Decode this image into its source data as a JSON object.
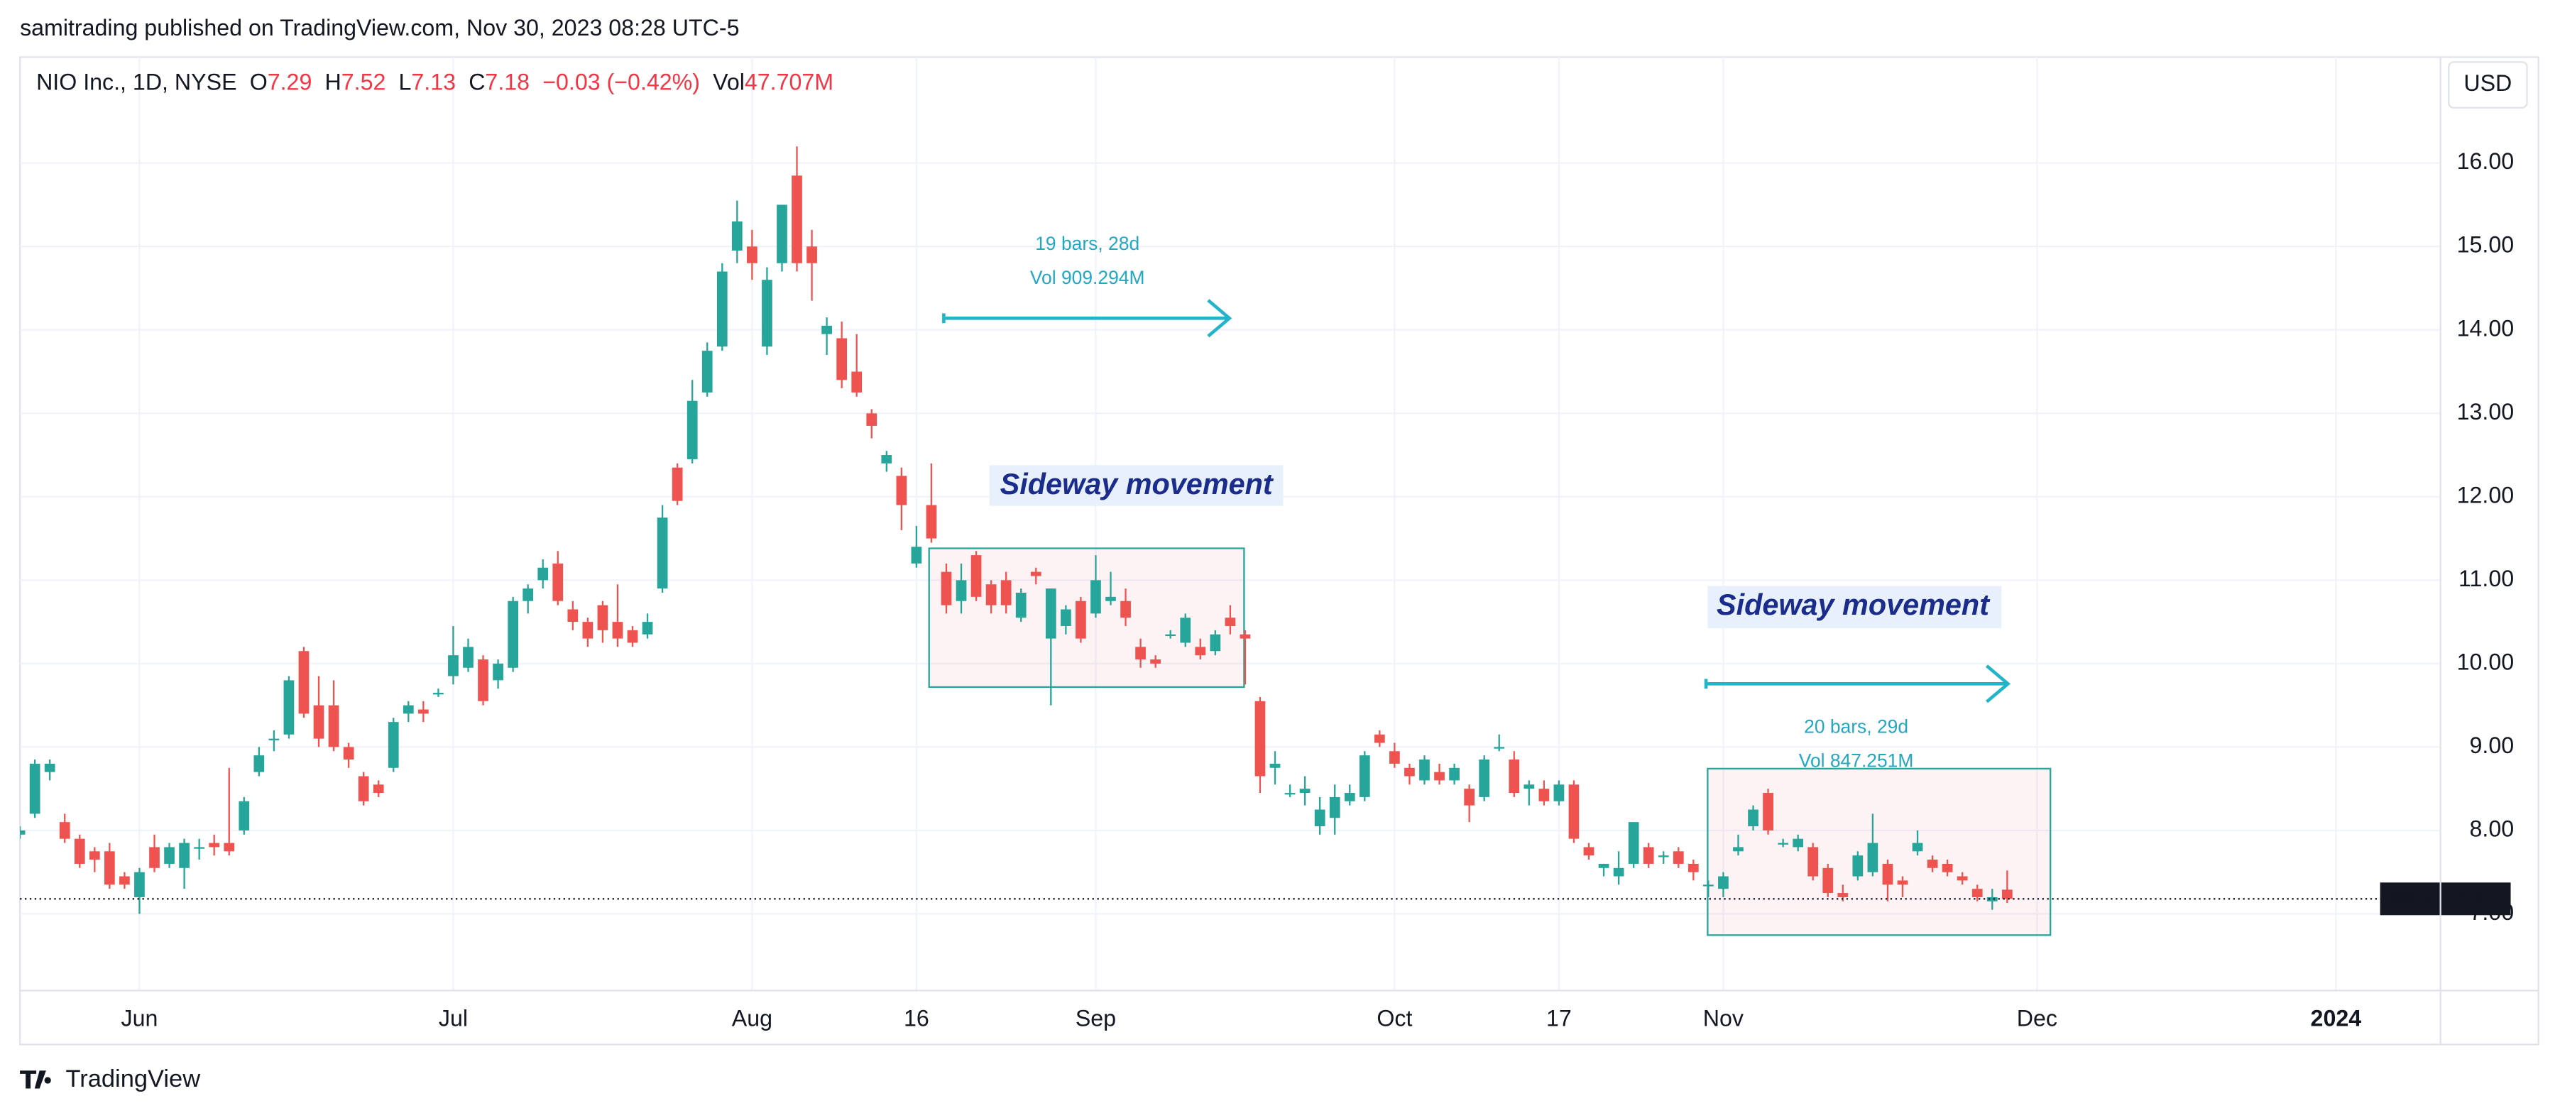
{
  "header": {
    "published": "samitrading published on TradingView.com, Nov 30, 2023 08:28 UTC-5"
  },
  "chart_data": {
    "type": "candlestick",
    "title": "NIO Inc., 1D, NYSE",
    "legend_labels": [
      "O",
      "H",
      "L",
      "C"
    ],
    "change": "−0.03 (−0.42%)",
    "volume_label": "Vol",
    "volume": "47.707M",
    "currency": "USD",
    "symbol": "NIO",
    "up_color": "#26a69a",
    "down_color": "#ef5350",
    "grid": true,
    "xlim": [
      0,
      162
    ],
    "xticks": [
      {
        "value": 8,
        "label": "Jun"
      },
      {
        "value": 29,
        "label": "Jul"
      },
      {
        "value": 49,
        "label": "Aug"
      },
      {
        "value": 60,
        "label": "16"
      },
      {
        "value": 72,
        "label": "Sep"
      },
      {
        "value": 92,
        "label": "Oct"
      },
      {
        "value": 103,
        "label": "17"
      },
      {
        "value": 114,
        "label": "Nov"
      },
      {
        "value": 135,
        "label": "Dec"
      },
      {
        "value": 155,
        "label": "2024"
      }
    ],
    "ylim": [
      6.08,
      17.27
    ],
    "yticks": [
      {
        "value": 7,
        "label": "7.00"
      },
      {
        "value": 8,
        "label": "8.00"
      },
      {
        "value": 9,
        "label": "9.00"
      },
      {
        "value": 10,
        "label": "10.00"
      },
      {
        "value": 11,
        "label": "11.00"
      },
      {
        "value": 12,
        "label": "12.00"
      },
      {
        "value": 13,
        "label": "13.00"
      },
      {
        "value": 14,
        "label": "14.00"
      },
      {
        "value": 15,
        "label": "15.00"
      },
      {
        "value": 16,
        "label": "16.00"
      }
    ],
    "annotations": [
      {
        "bars": "19 bars, 28d",
        "volume": "Vol 909.294M",
        "text": "Sideway movement"
      },
      {
        "bars": "20 bars, 29d",
        "volume": "Vol 847.251M",
        "text": "Sideway movement"
      }
    ],
    "ohlc": [
      [
        7.95,
        8.05,
        7.9,
        8.0
      ],
      [
        8.2,
        8.85,
        8.15,
        8.8
      ],
      [
        8.7,
        8.85,
        8.6,
        8.8
      ],
      [
        8.1,
        8.2,
        7.85,
        7.9
      ],
      [
        7.9,
        7.95,
        7.55,
        7.6
      ],
      [
        7.75,
        7.8,
        7.5,
        7.65
      ],
      [
        7.75,
        7.85,
        7.3,
        7.35
      ],
      [
        7.45,
        7.5,
        7.3,
        7.35
      ],
      [
        7.2,
        7.55,
        7.0,
        7.5
      ],
      [
        7.8,
        7.95,
        7.5,
        7.55
      ],
      [
        7.6,
        7.85,
        7.55,
        7.8
      ],
      [
        7.55,
        7.9,
        7.3,
        7.85
      ],
      [
        7.8,
        7.9,
        7.65,
        7.8
      ],
      [
        7.85,
        7.95,
        7.7,
        7.8
      ],
      [
        7.85,
        8.75,
        7.7,
        7.75
      ],
      [
        8.0,
        8.4,
        7.95,
        8.35
      ],
      [
        8.7,
        9.0,
        8.65,
        8.9
      ],
      [
        9.1,
        9.2,
        8.95,
        9.1
      ],
      [
        9.15,
        9.85,
        9.1,
        9.8
      ],
      [
        10.15,
        10.2,
        9.35,
        9.4
      ],
      [
        9.5,
        9.85,
        9.0,
        9.1
      ],
      [
        9.5,
        9.8,
        8.95,
        9.0
      ],
      [
        9.0,
        9.05,
        8.75,
        8.85
      ],
      [
        8.65,
        8.7,
        8.3,
        8.35
      ],
      [
        8.55,
        8.6,
        8.4,
        8.45
      ],
      [
        8.75,
        9.35,
        8.7,
        9.3
      ],
      [
        9.4,
        9.55,
        9.3,
        9.5
      ],
      [
        9.45,
        9.55,
        9.3,
        9.4
      ],
      [
        9.65,
        9.7,
        9.6,
        9.65
      ],
      [
        9.85,
        10.45,
        9.75,
        10.1
      ],
      [
        9.95,
        10.3,
        9.9,
        10.2
      ],
      [
        10.05,
        10.1,
        9.5,
        9.55
      ],
      [
        9.8,
        10.05,
        9.7,
        10.0
      ],
      [
        9.95,
        10.8,
        9.9,
        10.75
      ],
      [
        10.75,
        10.95,
        10.6,
        10.9
      ],
      [
        11.0,
        11.25,
        10.9,
        11.15
      ],
      [
        11.2,
        11.35,
        10.7,
        10.75
      ],
      [
        10.65,
        10.75,
        10.4,
        10.5
      ],
      [
        10.5,
        10.55,
        10.2,
        10.3
      ],
      [
        10.7,
        10.75,
        10.25,
        10.4
      ],
      [
        10.5,
        10.95,
        10.2,
        10.3
      ],
      [
        10.4,
        10.45,
        10.2,
        10.25
      ],
      [
        10.35,
        10.6,
        10.3,
        10.5
      ],
      [
        10.9,
        11.9,
        10.85,
        11.75
      ],
      [
        12.35,
        12.4,
        11.9,
        11.95
      ],
      [
        12.45,
        13.4,
        12.4,
        13.15
      ],
      [
        13.25,
        13.85,
        13.2,
        13.75
      ],
      [
        13.8,
        14.8,
        13.75,
        14.7
      ],
      [
        14.95,
        15.55,
        14.8,
        15.3
      ],
      [
        15.0,
        15.2,
        14.6,
        14.8
      ],
      [
        13.8,
        14.75,
        13.7,
        14.6
      ],
      [
        14.8,
        15.5,
        14.7,
        15.5
      ],
      [
        15.85,
        16.2,
        14.7,
        14.8
      ],
      [
        15.0,
        15.2,
        14.35,
        14.8
      ],
      [
        13.95,
        14.15,
        13.7,
        14.05
      ],
      [
        13.9,
        14.1,
        13.3,
        13.4
      ],
      [
        13.5,
        13.95,
        13.2,
        13.25
      ],
      [
        13.0,
        13.05,
        12.7,
        12.85
      ],
      [
        12.4,
        12.55,
        12.3,
        12.5
      ],
      [
        12.25,
        12.35,
        11.6,
        11.9
      ],
      [
        11.2,
        11.65,
        11.15,
        11.4
      ],
      [
        11.9,
        12.4,
        11.45,
        11.5
      ],
      [
        11.1,
        11.2,
        10.6,
        10.7
      ],
      [
        10.75,
        11.2,
        10.6,
        11.0
      ],
      [
        11.3,
        11.35,
        10.75,
        10.8
      ],
      [
        10.95,
        11.0,
        10.6,
        10.7
      ],
      [
        11.0,
        11.1,
        10.6,
        10.7
      ],
      [
        10.55,
        10.9,
        10.5,
        10.85
      ],
      [
        11.1,
        11.15,
        10.95,
        11.05
      ],
      [
        10.3,
        10.9,
        9.5,
        10.9
      ],
      [
        10.45,
        10.7,
        10.35,
        10.65
      ],
      [
        10.75,
        10.8,
        10.25,
        10.3
      ],
      [
        10.6,
        11.3,
        10.55,
        11.0
      ],
      [
        10.75,
        11.1,
        10.7,
        10.8
      ],
      [
        10.75,
        10.9,
        10.45,
        10.55
      ],
      [
        10.2,
        10.3,
        9.95,
        10.05
      ],
      [
        10.05,
        10.1,
        9.95,
        10.0
      ],
      [
        10.35,
        10.4,
        10.3,
        10.35
      ],
      [
        10.25,
        10.6,
        10.2,
        10.55
      ],
      [
        10.2,
        10.3,
        10.05,
        10.1
      ],
      [
        10.15,
        10.4,
        10.1,
        10.35
      ],
      [
        10.55,
        10.7,
        10.35,
        10.45
      ],
      [
        10.35,
        10.4,
        9.75,
        10.3
      ],
      [
        9.55,
        9.6,
        8.45,
        8.65
      ],
      [
        8.75,
        8.95,
        8.55,
        8.8
      ],
      [
        8.45,
        8.55,
        8.4,
        8.45
      ],
      [
        8.45,
        8.65,
        8.3,
        8.5
      ],
      [
        8.05,
        8.4,
        7.95,
        8.25
      ],
      [
        8.15,
        8.55,
        7.95,
        8.4
      ],
      [
        8.35,
        8.55,
        8.3,
        8.45
      ],
      [
        8.4,
        8.95,
        8.35,
        8.9
      ],
      [
        9.15,
        9.2,
        9.0,
        9.05
      ],
      [
        8.95,
        9.05,
        8.75,
        8.8
      ],
      [
        8.75,
        8.8,
        8.55,
        8.65
      ],
      [
        8.6,
        8.9,
        8.55,
        8.85
      ],
      [
        8.7,
        8.8,
        8.55,
        8.6
      ],
      [
        8.6,
        8.8,
        8.55,
        8.75
      ],
      [
        8.5,
        8.55,
        8.1,
        8.3
      ],
      [
        8.4,
        8.9,
        8.35,
        8.85
      ],
      [
        9.0,
        9.15,
        8.95,
        9.0
      ],
      [
        8.85,
        8.95,
        8.4,
        8.45
      ],
      [
        8.5,
        8.6,
        8.3,
        8.55
      ],
      [
        8.5,
        8.6,
        8.3,
        8.35
      ],
      [
        8.35,
        8.6,
        8.3,
        8.55
      ],
      [
        8.55,
        8.6,
        7.85,
        7.9
      ],
      [
        7.8,
        7.85,
        7.65,
        7.7
      ],
      [
        7.55,
        7.6,
        7.45,
        7.6
      ],
      [
        7.45,
        7.75,
        7.35,
        7.55
      ],
      [
        7.6,
        8.1,
        7.55,
        8.1
      ],
      [
        7.8,
        7.85,
        7.55,
        7.6
      ],
      [
        7.7,
        7.75,
        7.6,
        7.7
      ],
      [
        7.75,
        7.8,
        7.55,
        7.6
      ],
      [
        7.6,
        7.65,
        7.4,
        7.5
      ],
      [
        7.35,
        7.4,
        7.2,
        7.35
      ],
      [
        7.3,
        7.5,
        7.2,
        7.45
      ],
      [
        7.75,
        7.95,
        7.7,
        7.8
      ],
      [
        8.05,
        8.3,
        8.0,
        8.25
      ],
      [
        8.45,
        8.5,
        7.95,
        8.0
      ],
      [
        7.85,
        7.9,
        7.8,
        7.85
      ],
      [
        7.8,
        7.95,
        7.75,
        7.9
      ],
      [
        7.8,
        7.85,
        7.4,
        7.45
      ],
      [
        7.55,
        7.6,
        7.2,
        7.25
      ],
      [
        7.25,
        7.35,
        7.15,
        7.2
      ],
      [
        7.45,
        7.75,
        7.4,
        7.7
      ],
      [
        7.5,
        8.2,
        7.45,
        7.85
      ],
      [
        7.6,
        7.65,
        7.15,
        7.35
      ],
      [
        7.4,
        7.45,
        7.2,
        7.35
      ],
      [
        7.75,
        8.0,
        7.7,
        7.85
      ],
      [
        7.65,
        7.7,
        7.5,
        7.55
      ],
      [
        7.6,
        7.65,
        7.45,
        7.5
      ],
      [
        7.45,
        7.5,
        7.35,
        7.4
      ],
      [
        7.3,
        7.35,
        7.15,
        7.2
      ],
      [
        7.15,
        7.3,
        7.05,
        7.2
      ],
      [
        7.29,
        7.52,
        7.13,
        7.18
      ]
    ]
  },
  "footer": {
    "brand": "TradingView"
  }
}
